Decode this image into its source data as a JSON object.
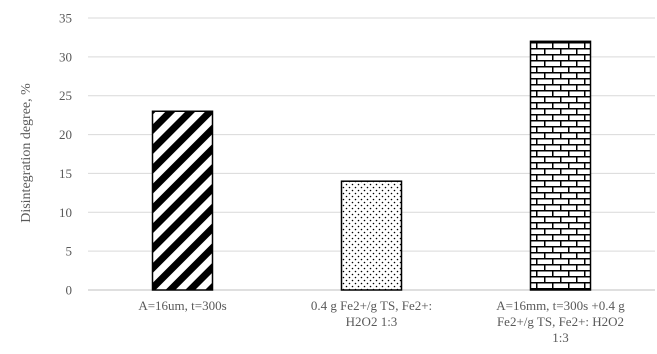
{
  "chart_data": {
    "type": "bar",
    "categories": [
      [
        "A=16um, t=300s"
      ],
      [
        "0.4 g Fe2+/g TS, Fe2+:",
        "H2O2 1:3"
      ],
      [
        "A=16mm, t=300s +0.4 g",
        "Fe2+/g TS, Fe2+: H2O2",
        "1:3"
      ]
    ],
    "values": [
      23,
      14,
      32
    ],
    "patterns": [
      "diagonal-stripes",
      "dots",
      "bricks"
    ],
    "title": "",
    "xlabel": "",
    "ylabel": "Disintegration degree, %",
    "ylim": [
      0,
      35
    ],
    "yticks": [
      0,
      5,
      10,
      15,
      20,
      25,
      30,
      35
    ],
    "grid": true,
    "legend": "none",
    "colors": {
      "bar_stroke": "#000000",
      "grid": "#d9d9d9",
      "text": "#595959"
    }
  }
}
